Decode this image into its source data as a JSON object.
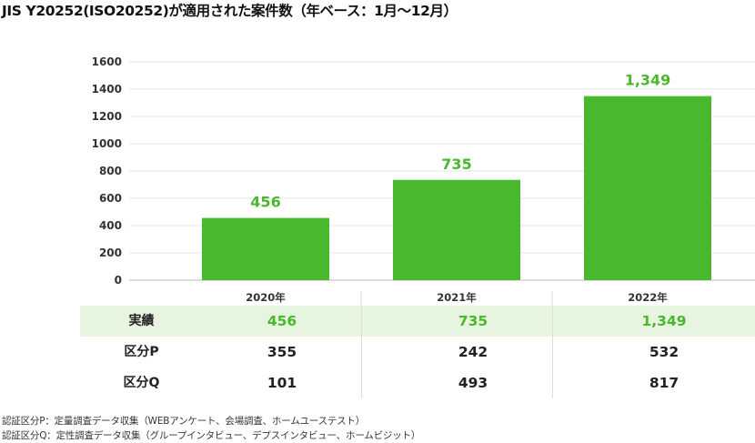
{
  "title": "JIS Y20252(ISO20252)が適用された案件数（年ベース：1月〜12月）",
  "colors": {
    "bar": "#4ab82e",
    "highlight_row": "#e7f4df",
    "grid": "#e6e6e6"
  },
  "chart_data": {
    "type": "bar",
    "title": "JIS Y20252(ISO20252)が適用された案件数（年ベース：1月〜12月）",
    "categories": [
      "2020年",
      "2021年",
      "2022年"
    ],
    "values": [
      456,
      735,
      1349
    ],
    "value_labels": [
      "456",
      "735",
      "1,349"
    ],
    "y_ticks": [
      "0",
      "200",
      "400",
      "600",
      "800",
      "1000",
      "1200",
      "1400",
      "1600"
    ],
    "ylim": [
      0,
      1600
    ],
    "xlabel": "",
    "ylabel": "",
    "grid": true
  },
  "table": {
    "rows": [
      {
        "label": "実績",
        "values": [
          "456",
          "735",
          "1,349"
        ]
      },
      {
        "label": "区分P",
        "values": [
          "355",
          "242",
          "532"
        ]
      },
      {
        "label": "区分Q",
        "values": [
          "101",
          "493",
          "817"
        ]
      }
    ]
  },
  "notes": [
    "認証区分P：定量調査データ収集（WEBアンケート、会場調査、ホームユーステスト）",
    "認証区分Q：定性調査データ収集（グループインタビュー、デプスインタビュー、ホームビジット）"
  ]
}
